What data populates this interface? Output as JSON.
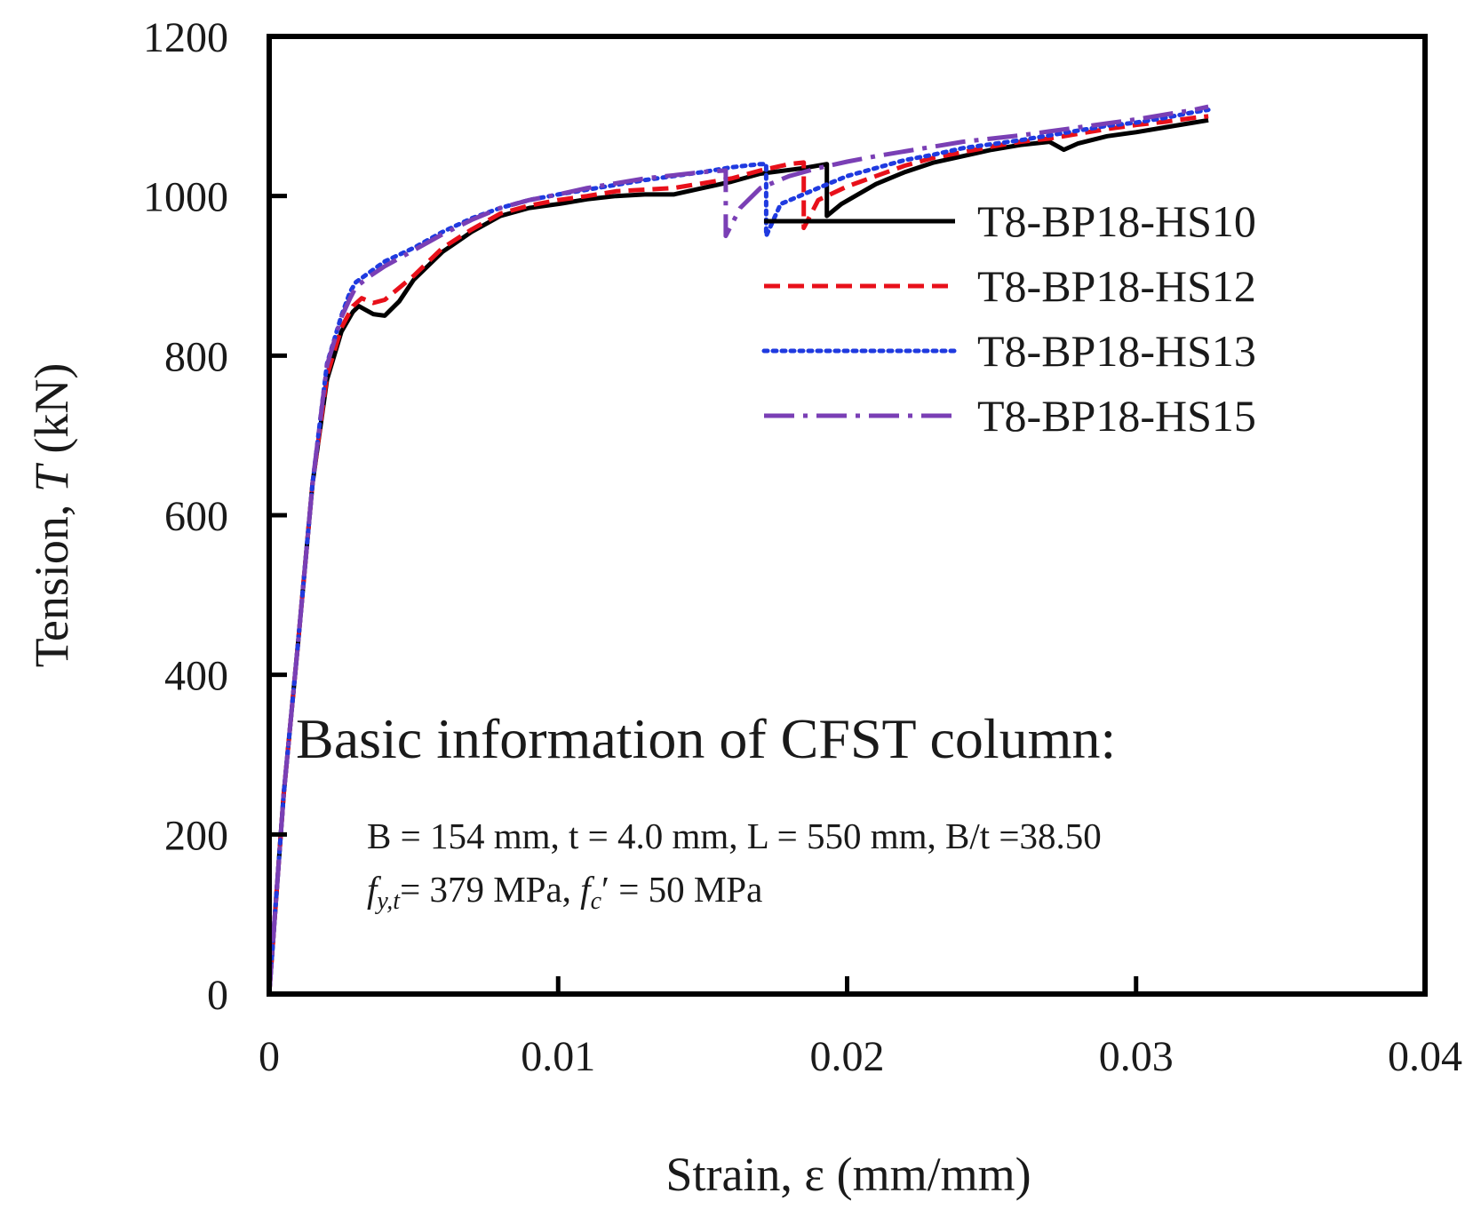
{
  "chart_data": {
    "type": "line",
    "xlabel": "Strain, ε (mm/mm)",
    "ylabel_prefix": "Tension, ",
    "ylabel_var": "T",
    "ylabel_suffix": " (kN)",
    "xlim": [
      0,
      0.04
    ],
    "ylim": [
      0,
      1200
    ],
    "xticks": [
      0,
      0.01,
      0.02,
      0.03,
      0.04
    ],
    "xtick_labels": [
      "0",
      "0.01",
      "0.02",
      "0.03",
      "0.04"
    ],
    "yticks": [
      0,
      200,
      400,
      600,
      800,
      1000,
      1200
    ],
    "ytick_labels": [
      "0",
      "200",
      "400",
      "600",
      "800",
      "1000",
      "1200"
    ],
    "grid": false,
    "legend_position": "top-right",
    "series": [
      {
        "name": "T8-BP18-HS10",
        "color": "#000000",
        "dash": "solid",
        "points": [
          [
            0,
            0
          ],
          [
            0.0005,
            250
          ],
          [
            0.001,
            440
          ],
          [
            0.0015,
            640
          ],
          [
            0.002,
            770
          ],
          [
            0.0025,
            830
          ],
          [
            0.0029,
            855
          ],
          [
            0.0031,
            862
          ],
          [
            0.0033,
            858
          ],
          [
            0.0036,
            852
          ],
          [
            0.004,
            850
          ],
          [
            0.0045,
            868
          ],
          [
            0.005,
            895
          ],
          [
            0.006,
            930
          ],
          [
            0.007,
            955
          ],
          [
            0.008,
            975
          ],
          [
            0.009,
            985
          ],
          [
            0.01,
            990
          ],
          [
            0.011,
            996
          ],
          [
            0.012,
            1000
          ],
          [
            0.013,
            1002
          ],
          [
            0.014,
            1002
          ],
          [
            0.015,
            1010
          ],
          [
            0.016,
            1018
          ],
          [
            0.017,
            1028
          ],
          [
            0.0185,
            1035
          ],
          [
            0.0193,
            1040
          ],
          [
            0.0193,
            975
          ],
          [
            0.0198,
            990
          ],
          [
            0.021,
            1015
          ],
          [
            0.022,
            1030
          ],
          [
            0.023,
            1042
          ],
          [
            0.024,
            1050
          ],
          [
            0.025,
            1058
          ],
          [
            0.026,
            1064
          ],
          [
            0.027,
            1068
          ],
          [
            0.0275,
            1058
          ],
          [
            0.028,
            1066
          ],
          [
            0.029,
            1075
          ],
          [
            0.03,
            1080
          ],
          [
            0.031,
            1086
          ],
          [
            0.032,
            1092
          ],
          [
            0.0325,
            1095
          ]
        ]
      },
      {
        "name": "T8-BP18-HS12",
        "color": "#e8101a",
        "dash": "dashed",
        "points": [
          [
            0,
            0
          ],
          [
            0.0005,
            250
          ],
          [
            0.001,
            440
          ],
          [
            0.0015,
            640
          ],
          [
            0.002,
            775
          ],
          [
            0.0025,
            835
          ],
          [
            0.0029,
            862
          ],
          [
            0.0032,
            872
          ],
          [
            0.0036,
            866
          ],
          [
            0.004,
            870
          ],
          [
            0.005,
            900
          ],
          [
            0.006,
            935
          ],
          [
            0.007,
            958
          ],
          [
            0.008,
            978
          ],
          [
            0.009,
            988
          ],
          [
            0.01,
            995
          ],
          [
            0.011,
            1000
          ],
          [
            0.012,
            1006
          ],
          [
            0.013,
            1008
          ],
          [
            0.014,
            1010
          ],
          [
            0.015,
            1016
          ],
          [
            0.016,
            1022
          ],
          [
            0.017,
            1032
          ],
          [
            0.018,
            1040
          ],
          [
            0.0185,
            1042
          ],
          [
            0.0185,
            960
          ],
          [
            0.019,
            995
          ],
          [
            0.02,
            1012
          ],
          [
            0.021,
            1025
          ],
          [
            0.022,
            1038
          ],
          [
            0.023,
            1048
          ],
          [
            0.024,
            1055
          ],
          [
            0.025,
            1062
          ],
          [
            0.026,
            1068
          ],
          [
            0.027,
            1072
          ],
          [
            0.028,
            1078
          ],
          [
            0.029,
            1084
          ],
          [
            0.03,
            1089
          ],
          [
            0.031,
            1093
          ],
          [
            0.032,
            1098
          ],
          [
            0.0325,
            1100
          ]
        ]
      },
      {
        "name": "T8-BP18-HS13",
        "color": "#1f3ae0",
        "dash": "dotted",
        "points": [
          [
            0,
            0
          ],
          [
            0.0005,
            250
          ],
          [
            0.001,
            440
          ],
          [
            0.0015,
            640
          ],
          [
            0.002,
            790
          ],
          [
            0.0025,
            850
          ],
          [
            0.0028,
            880
          ],
          [
            0.003,
            892
          ],
          [
            0.0035,
            905
          ],
          [
            0.004,
            918
          ],
          [
            0.005,
            935
          ],
          [
            0.006,
            955
          ],
          [
            0.007,
            972
          ],
          [
            0.008,
            985
          ],
          [
            0.009,
            995
          ],
          [
            0.01,
            1002
          ],
          [
            0.011,
            1008
          ],
          [
            0.012,
            1014
          ],
          [
            0.013,
            1020
          ],
          [
            0.014,
            1025
          ],
          [
            0.015,
            1030
          ],
          [
            0.016,
            1036
          ],
          [
            0.017,
            1040
          ],
          [
            0.0172,
            1040
          ],
          [
            0.0172,
            950
          ],
          [
            0.0177,
            990
          ],
          [
            0.019,
            1010
          ],
          [
            0.02,
            1025
          ],
          [
            0.021,
            1035
          ],
          [
            0.022,
            1045
          ],
          [
            0.023,
            1052
          ],
          [
            0.024,
            1060
          ],
          [
            0.025,
            1065
          ],
          [
            0.026,
            1070
          ],
          [
            0.027,
            1076
          ],
          [
            0.028,
            1082
          ],
          [
            0.029,
            1088
          ],
          [
            0.03,
            1092
          ],
          [
            0.031,
            1098
          ],
          [
            0.032,
            1105
          ],
          [
            0.0325,
            1108
          ]
        ]
      },
      {
        "name": "T8-BP18-HS15",
        "color": "#7a3fb5",
        "dash": "dashdot",
        "points": [
          [
            0,
            0
          ],
          [
            0.0005,
            250
          ],
          [
            0.001,
            440
          ],
          [
            0.0015,
            640
          ],
          [
            0.002,
            788
          ],
          [
            0.0025,
            848
          ],
          [
            0.0028,
            872
          ],
          [
            0.003,
            886
          ],
          [
            0.0035,
            900
          ],
          [
            0.004,
            912
          ],
          [
            0.005,
            932
          ],
          [
            0.006,
            952
          ],
          [
            0.007,
            970
          ],
          [
            0.008,
            985
          ],
          [
            0.009,
            995
          ],
          [
            0.01,
            1002
          ],
          [
            0.011,
            1010
          ],
          [
            0.012,
            1016
          ],
          [
            0.013,
            1022
          ],
          [
            0.014,
            1026
          ],
          [
            0.015,
            1030
          ],
          [
            0.0158,
            1032
          ],
          [
            0.0158,
            950
          ],
          [
            0.0163,
            985
          ],
          [
            0.017,
            1010
          ],
          [
            0.018,
            1025
          ],
          [
            0.019,
            1035
          ],
          [
            0.02,
            1043
          ],
          [
            0.021,
            1050
          ],
          [
            0.022,
            1056
          ],
          [
            0.023,
            1062
          ],
          [
            0.024,
            1068
          ],
          [
            0.025,
            1072
          ],
          [
            0.026,
            1076
          ],
          [
            0.027,
            1081
          ],
          [
            0.028,
            1086
          ],
          [
            0.029,
            1091
          ],
          [
            0.03,
            1096
          ],
          [
            0.031,
            1102
          ],
          [
            0.032,
            1108
          ],
          [
            0.0325,
            1112
          ]
        ]
      }
    ],
    "annotation": {
      "title": "Basic information of CFST column:",
      "line1": "B = 154 mm, t = 4.0 mm, L = 550 mm, B/t =38.50",
      "line2_fy_sym": "f",
      "line2_fy_sub": "y,t",
      "line2_fy_val": "= 379 MPa, ",
      "line2_fc_sym": "f",
      "line2_fc_sub": "c",
      "line2_fc_prime": "′",
      "line2_fc_val": " = 50 MPa"
    }
  }
}
